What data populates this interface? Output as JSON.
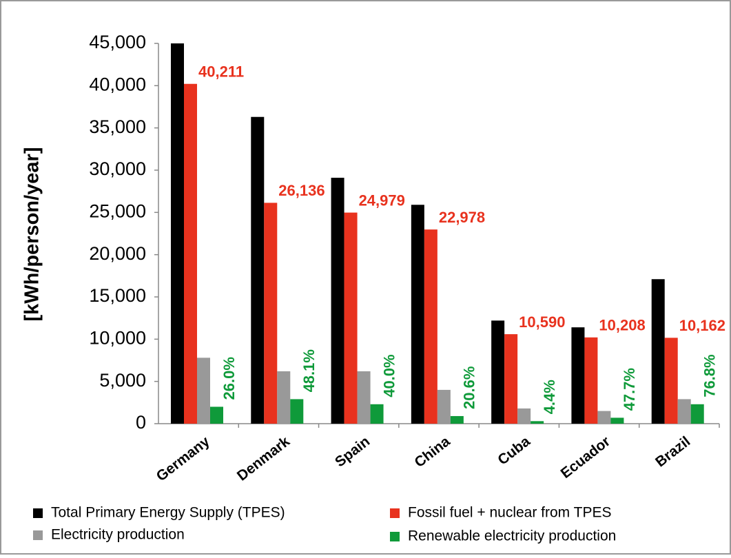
{
  "chart_data": {
    "type": "bar",
    "ylabel": "[kWh/person/year]",
    "categories": [
      "Germany",
      "Denmark",
      "Spain",
      "China",
      "Cuba",
      "Ecuador",
      "Brazil"
    ],
    "series": [
      {
        "name": "Total Primary Energy Supply (TPES)",
        "color": "#000000",
        "values": [
          45000,
          36300,
          29100,
          25900,
          12200,
          11400,
          17100
        ]
      },
      {
        "name": "Fossil fuel + nuclear from TPES",
        "color": "#e8321e",
        "values": [
          40211,
          26136,
          24979,
          22978,
          10590,
          10208,
          10162
        ],
        "value_labels": [
          "40,211",
          "26,136",
          "24,979",
          "22,978",
          "10,590",
          "10,208",
          "10,162"
        ]
      },
      {
        "name": "Electricity production",
        "color": "#999999",
        "values": [
          7800,
          6200,
          6200,
          4000,
          1800,
          1500,
          2900
        ]
      },
      {
        "name": "Renewable electricity production",
        "color": "#0f9a3a",
        "values": [
          2000,
          2900,
          2300,
          900,
          300,
          700,
          2300
        ]
      }
    ],
    "annotations": [
      "26.0%",
      "48.1%",
      "40.0%",
      "20.6%",
      "4.4%",
      "47.7%",
      "76.8%"
    ],
    "ylim": [
      0,
      45000
    ],
    "yticks": [
      0,
      {
        "value": 5000,
        "label": "5,000"
      },
      {
        "value": 10000,
        "label": "10,000"
      },
      {
        "value": 15000,
        "label": "15,000"
      },
      {
        "value": 20000,
        "label": "20,000"
      },
      {
        "value": 25000,
        "label": "25,000"
      },
      {
        "value": 30000,
        "label": "30,000"
      },
      {
        "value": 35000,
        "label": "35,000"
      },
      {
        "value": 40000,
        "label": "40,000"
      },
      {
        "value": 45000,
        "label": "45,000"
      }
    ],
    "legend": "bottom"
  }
}
